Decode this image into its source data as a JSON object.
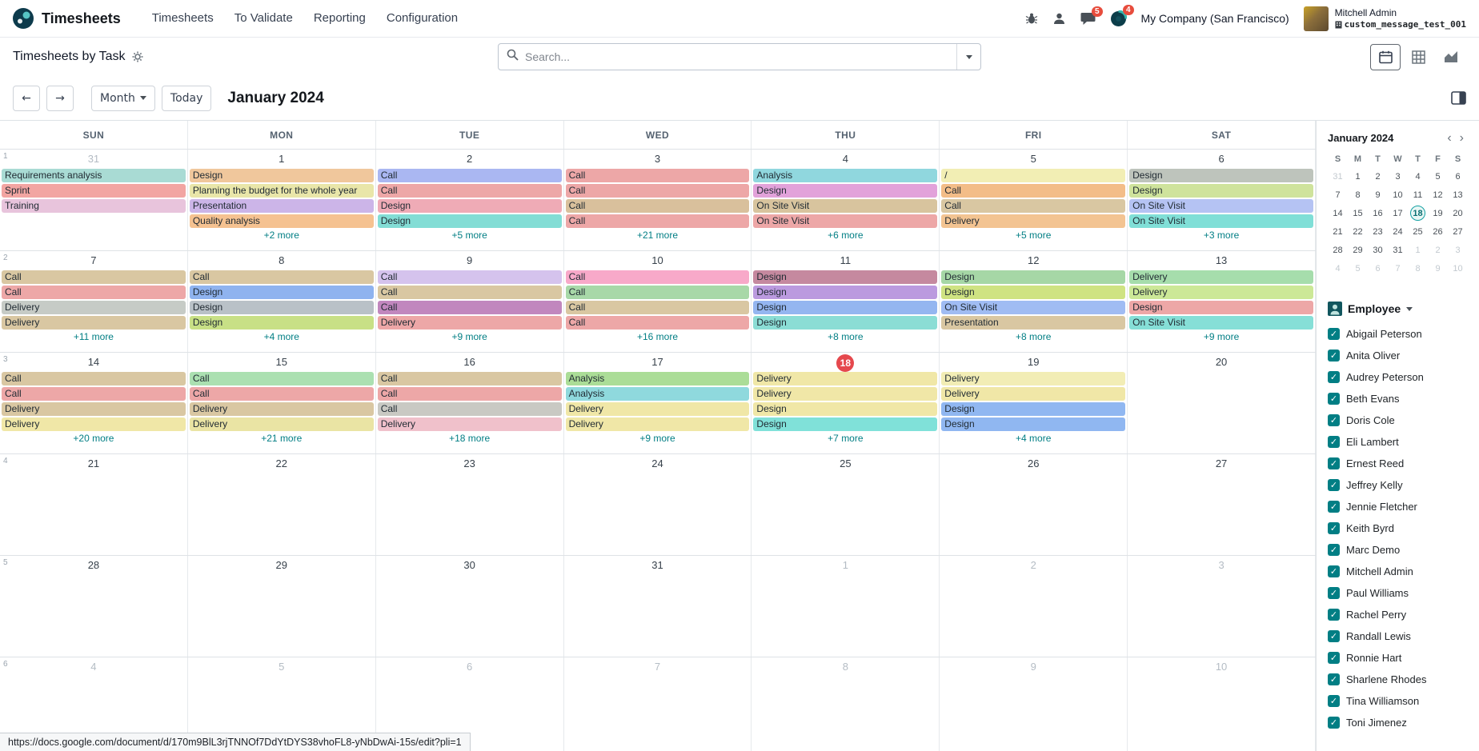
{
  "theme": {
    "primary": "#017e84",
    "today_badge": "#e5484d",
    "badge_red": "#e74c3c"
  },
  "topbar": {
    "brand": "Timesheets",
    "menu": [
      "Timesheets",
      "To Validate",
      "Reporting",
      "Configuration"
    ],
    "badges": {
      "messages": "5",
      "activities": "4"
    },
    "company": "My Company (San Francisco)",
    "user_name": "Mitchell Admin",
    "user_db": "custom_message_test_001"
  },
  "control_panel": {
    "title": "Timesheets by Task",
    "search_placeholder": "Search..."
  },
  "calendar_nav": {
    "scale_label": "Month",
    "today_label": "Today",
    "title": "January 2024"
  },
  "calendar": {
    "weekdays": [
      "SUN",
      "MON",
      "TUE",
      "WED",
      "THU",
      "FRI",
      "SAT"
    ],
    "weeks": [
      {
        "number": "1",
        "days": [
          {
            "date": "31",
            "muted": true,
            "events": [
              {
                "label": "Requirements analysis",
                "color": "#a9dbd4"
              },
              {
                "label": "Sprint",
                "color": "#f2a5a2"
              },
              {
                "label": "Training",
                "color": "#e8c4dc"
              }
            ],
            "more": ""
          },
          {
            "date": "1",
            "events": [
              {
                "label": "Design",
                "color": "#f0c79c"
              },
              {
                "label": "Planning the budget for the whole year",
                "color": "#e9e6a9"
              },
              {
                "label": "Presentation",
                "color": "#ccb5e8"
              },
              {
                "label": "Quality analysis",
                "color": "#f5c291"
              }
            ],
            "more": "+2 more"
          },
          {
            "date": "2",
            "events": [
              {
                "label": "Call",
                "color": "#aab7f2"
              },
              {
                "label": "Call",
                "color": "#eda7a7"
              },
              {
                "label": "Design",
                "color": "#efabb6"
              },
              {
                "label": "Design",
                "color": "#83ddd5"
              }
            ],
            "more": "+5 more"
          },
          {
            "date": "3",
            "events": [
              {
                "label": "Call",
                "color": "#eda7a7"
              },
              {
                "label": "Call",
                "color": "#eda7a7"
              },
              {
                "label": "Call",
                "color": "#d9c09c"
              },
              {
                "label": "Call",
                "color": "#eda7a7"
              }
            ],
            "more": "+21 more"
          },
          {
            "date": "4",
            "events": [
              {
                "label": "Analysis",
                "color": "#90d7de"
              },
              {
                "label": "Design",
                "color": "#e2a2da"
              },
              {
                "label": "On Site Visit",
                "color": "#d8c49e"
              },
              {
                "label": "On Site Visit",
                "color": "#eda7a7"
              }
            ],
            "more": "+6 more"
          },
          {
            "date": "5",
            "events": [
              {
                "label": "/",
                "color": "#f2eeb4"
              },
              {
                "label": "Call",
                "color": "#f3bd88"
              },
              {
                "label": "Call",
                "color": "#d9c7a2"
              },
              {
                "label": "Delivery",
                "color": "#f3c492"
              }
            ],
            "more": "+5 more"
          },
          {
            "date": "6",
            "events": [
              {
                "label": "Design",
                "color": "#bec4bc"
              },
              {
                "label": "Design",
                "color": "#cfe39c"
              },
              {
                "label": "On Site Visit",
                "color": "#b5c3f3"
              },
              {
                "label": "On Site Visit",
                "color": "#80dfd7"
              }
            ],
            "more": "+3 more"
          }
        ]
      },
      {
        "number": "2",
        "days": [
          {
            "date": "7",
            "events": [
              {
                "label": "Call",
                "color": "#d9c7a2"
              },
              {
                "label": "Call",
                "color": "#eda7a7"
              },
              {
                "label": "Delivery",
                "color": "#c6cbc6"
              },
              {
                "label": "Delivery",
                "color": "#d9c7a2"
              }
            ],
            "more": "+11 more"
          },
          {
            "date": "8",
            "events": [
              {
                "label": "Call",
                "color": "#d9c7a2"
              },
              {
                "label": "Design",
                "color": "#8fb3ef"
              },
              {
                "label": "Design",
                "color": "#b9c1c7"
              },
              {
                "label": "Design",
                "color": "#c8e086"
              }
            ],
            "more": "+4 more"
          },
          {
            "date": "9",
            "events": [
              {
                "label": "Call",
                "color": "#d5c3ed"
              },
              {
                "label": "Call",
                "color": "#d9c7a2"
              },
              {
                "label": "Call",
                "color": "#c187be"
              },
              {
                "label": "Delivery",
                "color": "#eda7a7"
              }
            ],
            "more": "+9 more"
          },
          {
            "date": "10",
            "events": [
              {
                "label": "Call",
                "color": "#f8a9c9"
              },
              {
                "label": "Call",
                "color": "#a8d8a8"
              },
              {
                "label": "Call",
                "color": "#d9c7a2"
              },
              {
                "label": "Call",
                "color": "#eda7a7"
              }
            ],
            "more": "+16 more"
          },
          {
            "date": "11",
            "events": [
              {
                "label": "Design",
                "color": "#c5899f"
              },
              {
                "label": "Design",
                "color": "#bb9adf"
              },
              {
                "label": "Design",
                "color": "#94b6f0"
              },
              {
                "label": "Design",
                "color": "#8bddd5"
              }
            ],
            "more": "+8 more"
          },
          {
            "date": "12",
            "events": [
              {
                "label": "Design",
                "color": "#a6d7a6"
              },
              {
                "label": "Design",
                "color": "#cfe382"
              },
              {
                "label": "On Site Visit",
                "color": "#a0bcf3"
              },
              {
                "label": "Presentation",
                "color": "#d9c7a2"
              }
            ],
            "more": "+8 more"
          },
          {
            "date": "13",
            "events": [
              {
                "label": "Delivery",
                "color": "#a6ddac"
              },
              {
                "label": "Delivery",
                "color": "#cce897"
              },
              {
                "label": "Design",
                "color": "#eda7a7"
              },
              {
                "label": "On Site Visit",
                "color": "#86dfd7"
              }
            ],
            "more": "+9 more"
          }
        ]
      },
      {
        "number": "3",
        "days": [
          {
            "date": "14",
            "events": [
              {
                "label": "Call",
                "color": "#d9c7a2"
              },
              {
                "label": "Call",
                "color": "#eda7a7"
              },
              {
                "label": "Delivery",
                "color": "#d9c7a2"
              },
              {
                "label": "Delivery",
                "color": "#f0e7a7"
              }
            ],
            "more": "+20 more"
          },
          {
            "date": "15",
            "events": [
              {
                "label": "Call",
                "color": "#abe0b1"
              },
              {
                "label": "Call",
                "color": "#eda7a7"
              },
              {
                "label": "Delivery",
                "color": "#d9c7a2"
              },
              {
                "label": "Delivery",
                "color": "#eae4a4"
              }
            ],
            "more": "+21 more"
          },
          {
            "date": "16",
            "events": [
              {
                "label": "Call",
                "color": "#d9c7a2"
              },
              {
                "label": "Call",
                "color": "#eda7a7"
              },
              {
                "label": "Call",
                "color": "#c9c9c3"
              },
              {
                "label": "Delivery",
                "color": "#f0c1cb"
              }
            ],
            "more": "+18 more"
          },
          {
            "date": "17",
            "events": [
              {
                "label": "Analysis",
                "color": "#abdd97"
              },
              {
                "label": "Analysis",
                "color": "#8fd9dd"
              },
              {
                "label": "Delivery",
                "color": "#f0e7a7"
              },
              {
                "label": "Delivery",
                "color": "#f0e7a7"
              }
            ],
            "more": "+9 more"
          },
          {
            "date": "18",
            "today": true,
            "events": [
              {
                "label": "Delivery",
                "color": "#f0e7a7"
              },
              {
                "label": "Delivery",
                "color": "#f0e7a7"
              },
              {
                "label": "Design",
                "color": "#f0e7a7"
              },
              {
                "label": "Design",
                "color": "#80e1d9"
              }
            ],
            "more": "+7 more"
          },
          {
            "date": "19",
            "events": [
              {
                "label": "Delivery",
                "color": "#f2edb5"
              },
              {
                "label": "Delivery",
                "color": "#f0e7a7"
              },
              {
                "label": "Design",
                "color": "#90b7f1"
              },
              {
                "label": "Design",
                "color": "#90b7f1"
              }
            ],
            "more": "+4 more"
          },
          {
            "date": "20",
            "events": [],
            "more": ""
          }
        ]
      },
      {
        "number": "4",
        "days": [
          {
            "date": "21",
            "events": [],
            "more": ""
          },
          {
            "date": "22",
            "events": [],
            "more": ""
          },
          {
            "date": "23",
            "events": [],
            "more": ""
          },
          {
            "date": "24",
            "events": [],
            "more": ""
          },
          {
            "date": "25",
            "events": [],
            "more": ""
          },
          {
            "date": "26",
            "events": [],
            "more": ""
          },
          {
            "date": "27",
            "events": [],
            "more": ""
          }
        ]
      },
      {
        "number": "5",
        "days": [
          {
            "date": "28",
            "events": [],
            "more": ""
          },
          {
            "date": "29",
            "events": [],
            "more": ""
          },
          {
            "date": "30",
            "events": [],
            "more": ""
          },
          {
            "date": "31",
            "events": [],
            "more": ""
          },
          {
            "date": "1",
            "muted": true,
            "events": [],
            "more": ""
          },
          {
            "date": "2",
            "muted": true,
            "events": [],
            "more": ""
          },
          {
            "date": "3",
            "muted": true,
            "events": [],
            "more": ""
          }
        ]
      },
      {
        "number": "6",
        "days": [
          {
            "date": "4",
            "muted": true,
            "events": [],
            "more": ""
          },
          {
            "date": "5",
            "muted": true,
            "events": [],
            "more": ""
          },
          {
            "date": "6",
            "muted": true,
            "events": [],
            "more": ""
          },
          {
            "date": "7",
            "muted": true,
            "events": [],
            "more": ""
          },
          {
            "date": "8",
            "muted": true,
            "events": [],
            "more": ""
          },
          {
            "date": "9",
            "muted": true,
            "events": [],
            "more": ""
          },
          {
            "date": "10",
            "muted": true,
            "events": [],
            "more": ""
          }
        ]
      }
    ]
  },
  "sidebar": {
    "mini_calendar": {
      "title": "January 2024",
      "prev_icon": "‹",
      "next_icon": "›",
      "day_headers": [
        "S",
        "M",
        "T",
        "W",
        "T",
        "F",
        "S"
      ],
      "rows": [
        [
          {
            "d": "31",
            "muted": true
          },
          {
            "d": "1"
          },
          {
            "d": "2"
          },
          {
            "d": "3"
          },
          {
            "d": "4"
          },
          {
            "d": "5"
          },
          {
            "d": "6"
          }
        ],
        [
          {
            "d": "7"
          },
          {
            "d": "8"
          },
          {
            "d": "9"
          },
          {
            "d": "10"
          },
          {
            "d": "11"
          },
          {
            "d": "12"
          },
          {
            "d": "13"
          }
        ],
        [
          {
            "d": "14"
          },
          {
            "d": "15"
          },
          {
            "d": "16"
          },
          {
            "d": "17"
          },
          {
            "d": "18",
            "today": true
          },
          {
            "d": "19"
          },
          {
            "d": "20"
          }
        ],
        [
          {
            "d": "21"
          },
          {
            "d": "22"
          },
          {
            "d": "23"
          },
          {
            "d": "24"
          },
          {
            "d": "25"
          },
          {
            "d": "26"
          },
          {
            "d": "27"
          }
        ],
        [
          {
            "d": "28"
          },
          {
            "d": "29"
          },
          {
            "d": "30"
          },
          {
            "d": "31"
          },
          {
            "d": "1",
            "muted": true
          },
          {
            "d": "2",
            "muted": true
          },
          {
            "d": "3",
            "muted": true
          }
        ],
        [
          {
            "d": "4",
            "muted": true
          },
          {
            "d": "5",
            "muted": true
          },
          {
            "d": "6",
            "muted": true
          },
          {
            "d": "7",
            "muted": true
          },
          {
            "d": "8",
            "muted": true
          },
          {
            "d": "9",
            "muted": true
          },
          {
            "d": "10",
            "muted": true
          }
        ]
      ]
    },
    "employee_filter": {
      "label": "Employee",
      "check_glyph": "✓",
      "items": [
        "Abigail Peterson",
        "Anita Oliver",
        "Audrey Peterson",
        "Beth Evans",
        "Doris Cole",
        "Eli Lambert",
        "Ernest Reed",
        "Jeffrey Kelly",
        "Jennie Fletcher",
        "Keith Byrd",
        "Marc Demo",
        "Mitchell Admin",
        "Paul Williams",
        "Rachel Perry",
        "Randall Lewis",
        "Ronnie Hart",
        "Sharlene Rhodes",
        "Tina Williamson",
        "Toni Jimenez"
      ]
    }
  },
  "statusbar": {
    "url": "https://docs.google.com/document/d/170m9BlL3rjTNNOf7DdYtDYS38vhoFL8-yNbDwAi-15s/edit?pli=1"
  }
}
